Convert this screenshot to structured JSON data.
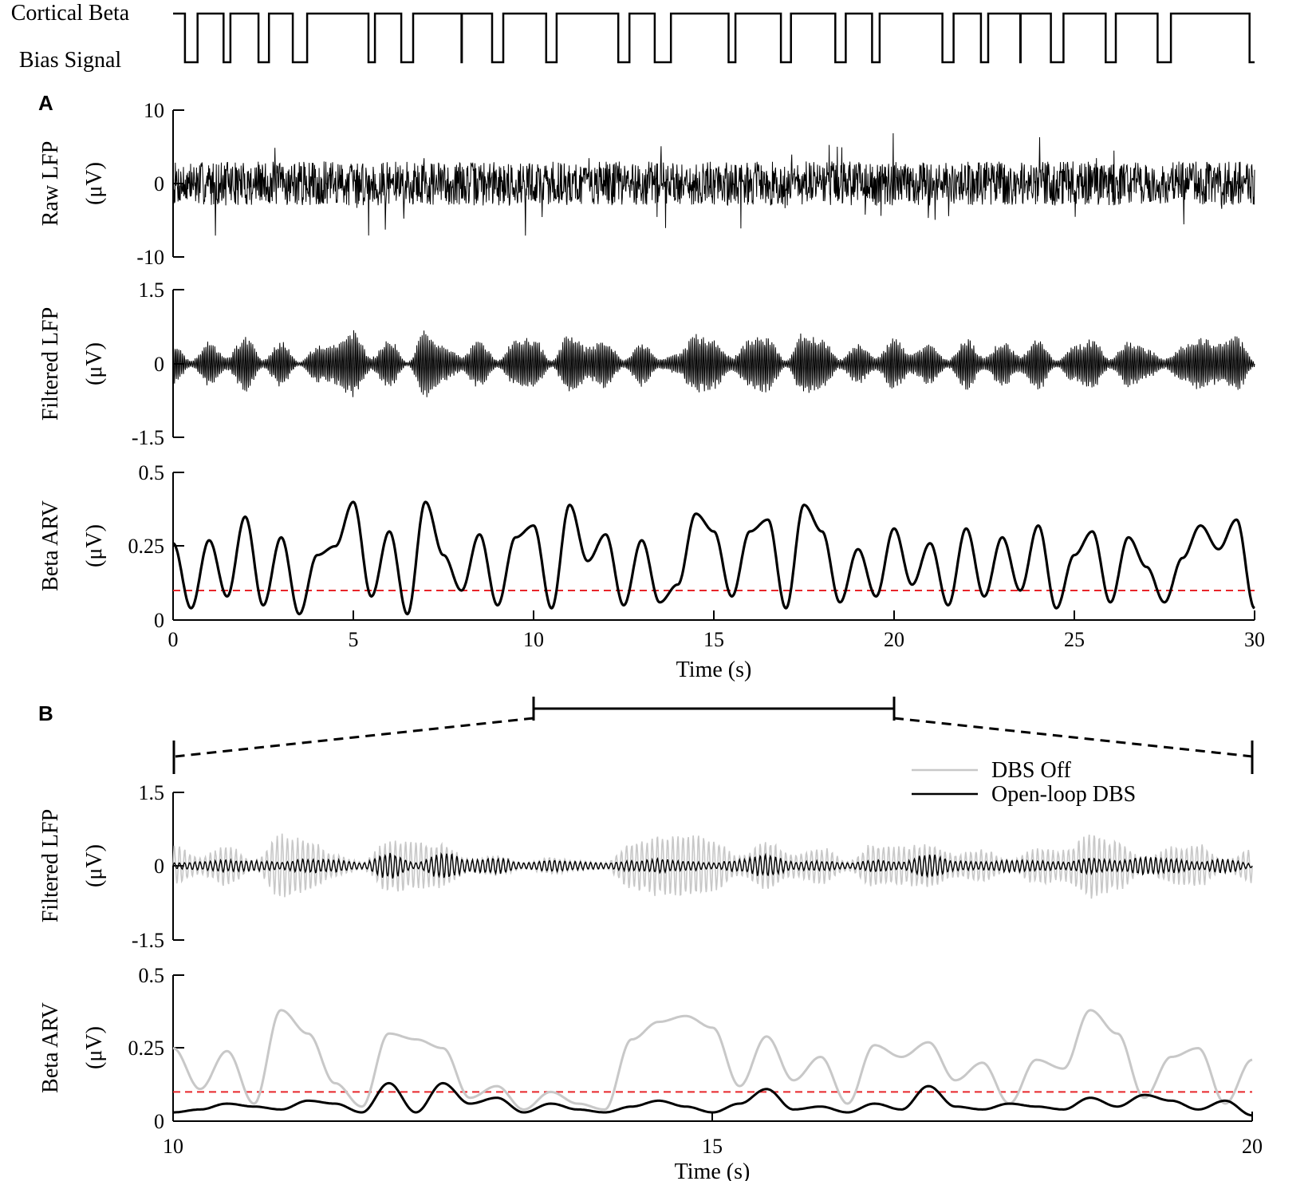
{
  "colors": {
    "ink": "#000000",
    "gray": "#c8c8c8",
    "threshold": "#e8262a"
  },
  "top": {
    "label_line1": "Cortical Beta",
    "label_line2": "Bias Signal"
  },
  "panelA": {
    "letter": "A",
    "xlabel": "Time (s)",
    "xticks": [
      "0",
      "5",
      "10",
      "15",
      "20",
      "25",
      "30"
    ],
    "raw": {
      "ylabel": "Raw LFP",
      "unit": "(μV)",
      "yticks": [
        "10",
        "0",
        "-10"
      ]
    },
    "filt": {
      "ylabel": "Filtered LFP",
      "unit": "(μV)",
      "yticks": [
        "1.5",
        "0",
        "-1.5"
      ]
    },
    "arv": {
      "ylabel": "Beta ARV",
      "unit": "(μV)",
      "yticks": [
        "0.5",
        "0.25",
        "0"
      ]
    }
  },
  "panelB": {
    "letter": "B",
    "xlabel": "Time (s)",
    "xticks": [
      "10",
      "15",
      "20"
    ],
    "legend": {
      "off": "DBS Off",
      "open": "Open-loop DBS"
    },
    "filt": {
      "ylabel": "Filtered LFP",
      "unit": "(μV)",
      "yticks": [
        "1.5",
        "0",
        "-1.5"
      ]
    },
    "arv": {
      "ylabel": "Beta ARV",
      "unit": "(μV)",
      "yticks": [
        "0.5",
        "0.25",
        "0"
      ]
    }
  },
  "chart_data": [
    {
      "type": "line",
      "panel": "top",
      "series": [
        {
          "name": "Cortical Beta Bias Signal",
          "levels": [
            0,
            1
          ]
        }
      ],
      "xlim": [
        0,
        30
      ]
    },
    {
      "type": "line",
      "panel": "A-raw",
      "ylabel": "Raw LFP (μV)",
      "ylim": [
        -10,
        10
      ],
      "xlim": [
        0,
        30
      ],
      "typical_amplitude": 3,
      "peak_amplitude": 9
    },
    {
      "type": "line",
      "panel": "A-filtered",
      "ylabel": "Filtered LFP (μV)",
      "ylim": [
        -1.5,
        1.5
      ],
      "xlim": [
        0,
        30
      ],
      "typical_amplitude": 0.45,
      "peak_amplitude": 0.6
    },
    {
      "type": "line",
      "panel": "A-arv",
      "xlabel": "Time (s)",
      "ylabel": "Beta ARV (μV)",
      "xlim": [
        0,
        30
      ],
      "ylim": [
        0,
        0.5
      ],
      "threshold": 0.1,
      "x": [
        0,
        0.5,
        1,
        1.5,
        2,
        2.5,
        3,
        3.5,
        4,
        4.5,
        5,
        5.5,
        6,
        6.5,
        7,
        7.5,
        8,
        8.5,
        9,
        9.5,
        10,
        10.5,
        11,
        11.5,
        12,
        12.5,
        13,
        13.5,
        14,
        14.5,
        15,
        15.5,
        16,
        16.5,
        17,
        17.5,
        18,
        18.5,
        19,
        19.5,
        20,
        20.5,
        21,
        21.5,
        22,
        22.5,
        23,
        23.5,
        24,
        24.5,
        25,
        25.5,
        26,
        26.5,
        27,
        27.5,
        28,
        28.5,
        29,
        29.5,
        30
      ],
      "y": [
        0.26,
        0.04,
        0.27,
        0.08,
        0.35,
        0.05,
        0.28,
        0.02,
        0.22,
        0.25,
        0.4,
        0.08,
        0.3,
        0.02,
        0.4,
        0.22,
        0.1,
        0.29,
        0.05,
        0.28,
        0.32,
        0.04,
        0.39,
        0.2,
        0.29,
        0.05,
        0.27,
        0.06,
        0.12,
        0.36,
        0.3,
        0.08,
        0.3,
        0.34,
        0.04,
        0.39,
        0.3,
        0.06,
        0.24,
        0.08,
        0.31,
        0.12,
        0.26,
        0.05,
        0.31,
        0.08,
        0.28,
        0.1,
        0.32,
        0.04,
        0.22,
        0.3,
        0.06,
        0.28,
        0.18,
        0.06,
        0.21,
        0.32,
        0.24,
        0.34,
        0.04
      ]
    },
    {
      "type": "line",
      "panel": "B-filtered",
      "ylabel": "Filtered LFP (μV)",
      "ylim": [
        -1.5,
        1.5
      ],
      "xlim": [
        10,
        20
      ],
      "series": [
        {
          "name": "DBS Off",
          "typical_amplitude": 0.55
        },
        {
          "name": "Open-loop DBS",
          "typical_amplitude": 0.12
        }
      ]
    },
    {
      "type": "line",
      "panel": "B-arv",
      "xlabel": "Time (s)",
      "ylabel": "Beta ARV (μV)",
      "xlim": [
        10,
        20
      ],
      "ylim": [
        0,
        0.5
      ],
      "threshold": 0.1,
      "x": [
        10,
        10.25,
        10.5,
        10.75,
        11,
        11.25,
        11.5,
        11.75,
        12,
        12.25,
        12.5,
        12.75,
        13,
        13.25,
        13.5,
        13.75,
        14,
        14.25,
        14.5,
        14.75,
        15,
        15.25,
        15.5,
        15.75,
        16,
        16.25,
        16.5,
        16.75,
        17,
        17.25,
        17.5,
        17.75,
        18,
        18.25,
        18.5,
        18.75,
        19,
        19.25,
        19.5,
        19.75,
        20
      ],
      "series": [
        {
          "name": "DBS Off",
          "y": [
            0.25,
            0.11,
            0.24,
            0.06,
            0.38,
            0.3,
            0.13,
            0.05,
            0.3,
            0.28,
            0.25,
            0.08,
            0.12,
            0.04,
            0.1,
            0.06,
            0.04,
            0.28,
            0.34,
            0.36,
            0.32,
            0.12,
            0.29,
            0.14,
            0.22,
            0.06,
            0.26,
            0.22,
            0.27,
            0.14,
            0.2,
            0.06,
            0.21,
            0.18,
            0.38,
            0.3,
            0.08,
            0.22,
            0.25,
            0.06,
            0.21
          ]
        },
        {
          "name": "Open-loop DBS",
          "y": [
            0.03,
            0.04,
            0.06,
            0.05,
            0.04,
            0.07,
            0.06,
            0.03,
            0.13,
            0.03,
            0.13,
            0.06,
            0.08,
            0.03,
            0.06,
            0.04,
            0.03,
            0.05,
            0.07,
            0.05,
            0.03,
            0.06,
            0.11,
            0.04,
            0.05,
            0.03,
            0.06,
            0.04,
            0.12,
            0.05,
            0.04,
            0.06,
            0.05,
            0.04,
            0.08,
            0.05,
            0.09,
            0.07,
            0.04,
            0.07,
            0.02
          ]
        }
      ]
    }
  ]
}
